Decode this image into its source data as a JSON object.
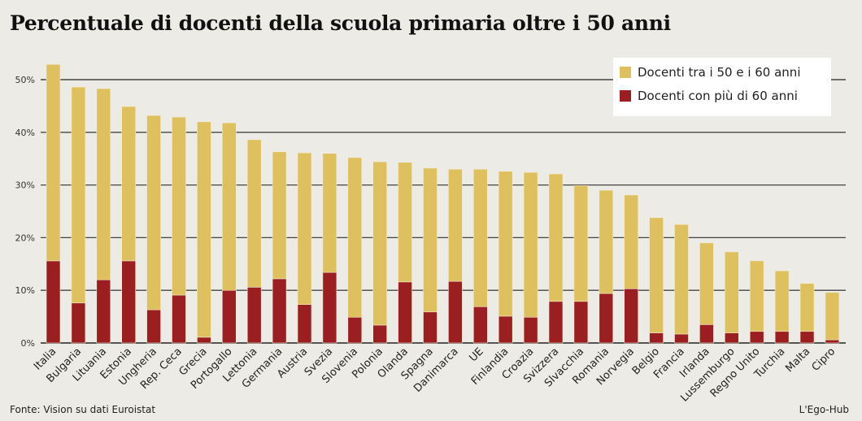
{
  "title": "Percentuale di docenti della scuola primaria oltre i 50 anni",
  "source": "Fonte: Vision su dati Euroistat",
  "credit": "L'Ego-Hub",
  "chart_data": {
    "type": "bar",
    "stacked": true,
    "title": "Percentuale di docenti della scuola primaria oltre i 50 anni",
    "xlabel": "",
    "ylabel": "",
    "ylim": [
      0,
      53
    ],
    "yticks": [
      "0%",
      "10%",
      "20%",
      "30%",
      "40%",
      "50%"
    ],
    "ytick_values": [
      0,
      10,
      20,
      30,
      40,
      50
    ],
    "grid": true,
    "legend_position": "top-right",
    "categories": [
      "Italia",
      "Bulgaria",
      "Lituania",
      "Estonia",
      "Ungheria",
      "Rep. Ceca",
      "Grecia",
      "Portogallo",
      "Lettonia",
      "Germania",
      "Austria",
      "Svezia",
      "Slovenia",
      "Polonia",
      "Olanda",
      "Spagna",
      "Danimarca",
      "UE",
      "Finlandia",
      "Croazia",
      "Svizzera",
      "Slvacchia",
      "Romania",
      "Norvegia",
      "Belgio",
      "Francia",
      "Irlanda",
      "Lussemburgo",
      "Regno Unito",
      "Turchia",
      "Malta",
      "Cipro"
    ],
    "series": [
      {
        "name": "Docenti con più di 60 anni",
        "color": "#9b1f20",
        "values": [
          15.6,
          7.6,
          12.0,
          15.6,
          6.3,
          9.1,
          1.1,
          10.0,
          10.6,
          12.2,
          7.3,
          13.4,
          4.9,
          3.4,
          11.6,
          5.9,
          11.7,
          6.9,
          5.1,
          4.9,
          7.9,
          7.9,
          9.4,
          10.3,
          1.9,
          1.7,
          3.5,
          1.9,
          2.2,
          2.2,
          2.2,
          0.6
        ]
      },
      {
        "name": "Docenti tra i 50 e i 60 anni",
        "color": "#dfc05f",
        "values": [
          37.3,
          41.0,
          36.3,
          29.3,
          36.9,
          33.8,
          40.9,
          31.8,
          28.0,
          24.1,
          28.8,
          22.6,
          30.3,
          31.0,
          22.7,
          27.3,
          21.3,
          26.1,
          27.5,
          27.5,
          24.2,
          22.0,
          19.6,
          17.8,
          21.9,
          20.8,
          15.5,
          15.4,
          13.4,
          11.5,
          9.1,
          9.0
        ]
      }
    ]
  },
  "legend": [
    {
      "label": "Docenti tra i 50 e i 60 anni",
      "color": "#dfc05f"
    },
    {
      "label": "Docenti con più di 60 anni",
      "color": "#9b1f20"
    }
  ]
}
